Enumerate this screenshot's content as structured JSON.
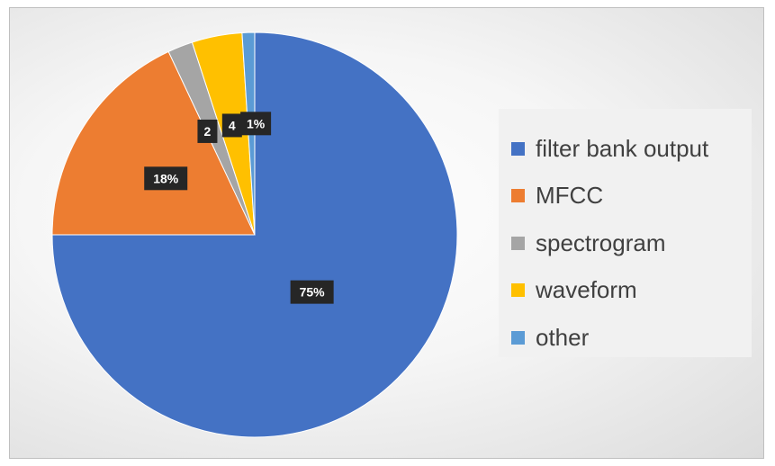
{
  "chart_data": {
    "type": "pie",
    "title": "",
    "categories": [
      "filter bank output",
      "MFCC",
      "spectrogram",
      "waveform",
      "other"
    ],
    "values": [
      75,
      18,
      2,
      4,
      1
    ],
    "data_labels": [
      "75%",
      "18%",
      "2",
      "4",
      "1%"
    ],
    "colors": [
      "#4472c4",
      "#ed7d31",
      "#a5a5a5",
      "#ffc000",
      "#5b9bd5"
    ],
    "legend_position": "right",
    "start_angle": "12 o'clock",
    "direction": "clockwise"
  }
}
